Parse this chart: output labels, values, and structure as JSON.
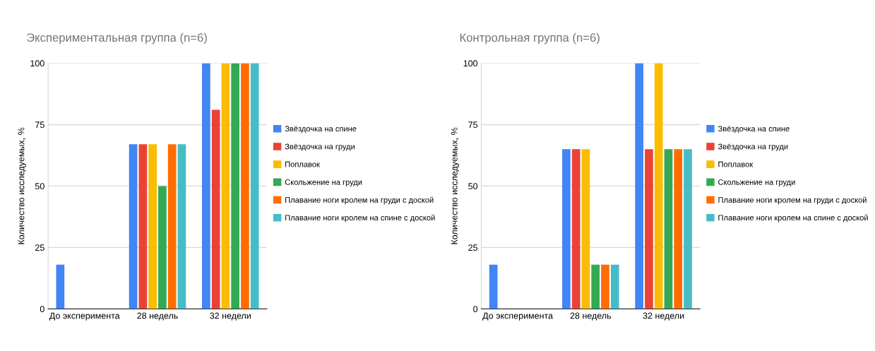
{
  "chart_data": [
    {
      "type": "bar",
      "title": "Экспериментальная группа (n=6)",
      "ylabel": "Количество исследуемых, %",
      "categories": [
        "До эксперимента",
        "28 недель",
        "32 недели"
      ],
      "ylim": [
        0,
        100
      ],
      "yticks": [
        0,
        25,
        50,
        75,
        100
      ],
      "grid": "y",
      "legend": "right",
      "series": [
        {
          "name": "Звёздочка на спине",
          "color": "#4285f4",
          "values": [
            18,
            67,
            100
          ]
        },
        {
          "name": "Звёздочка на груди",
          "color": "#ea4335",
          "values": [
            0,
            67,
            81
          ]
        },
        {
          "name": "Поплавок",
          "color": "#fbbc04",
          "values": [
            0,
            67,
            100
          ]
        },
        {
          "name": "Скольжение на груди",
          "color": "#34a853",
          "values": [
            0,
            50,
            100
          ]
        },
        {
          "name": "Плавание ноги кролем на груди с доской",
          "color": "#ff6d01",
          "values": [
            0,
            67,
            100
          ]
        },
        {
          "name": "Плавание ноги кролем на спине с доской",
          "color": "#46bdc6",
          "values": [
            0,
            67,
            100
          ]
        }
      ]
    },
    {
      "type": "bar",
      "title": "Контрольная группа (n=6)",
      "ylabel": "Количество исследуемых, %",
      "categories": [
        "До эксперимента",
        "28 недель",
        "32 недели"
      ],
      "ylim": [
        0,
        100
      ],
      "yticks": [
        0,
        25,
        50,
        75,
        100
      ],
      "grid": "y",
      "legend": "right",
      "series": [
        {
          "name": "Звёздочка на спине",
          "color": "#4285f4",
          "values": [
            18,
            65,
            100
          ]
        },
        {
          "name": "Звёздочка на груди",
          "color": "#ea4335",
          "values": [
            0,
            65,
            65
          ]
        },
        {
          "name": "Поплавок",
          "color": "#fbbc04",
          "values": [
            0,
            65,
            100
          ]
        },
        {
          "name": "Скольжение на груди",
          "color": "#34a853",
          "values": [
            0,
            18,
            65
          ]
        },
        {
          "name": "Плавание ноги кролем на груди с доской",
          "color": "#ff6d01",
          "values": [
            0,
            18,
            65
          ]
        },
        {
          "name": "Плавание ноги кролем на спине с доской",
          "color": "#46bdc6",
          "values": [
            0,
            18,
            65
          ]
        }
      ]
    }
  ]
}
